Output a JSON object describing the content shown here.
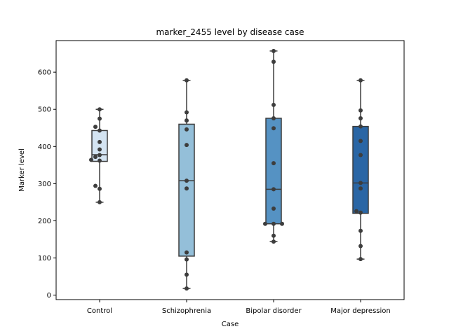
{
  "chart_data": {
    "type": "box",
    "title": "marker_2455 level by disease case",
    "xlabel": "Case",
    "ylabel": "Marker level",
    "ylim": [
      -12,
      685
    ],
    "yticks": [
      0,
      100,
      200,
      300,
      400,
      500,
      600
    ],
    "grid": false,
    "categories": [
      "Control",
      "Schizophrenia",
      "Bipolar disorder",
      "Major depression"
    ],
    "colors": [
      "#d4e4f2",
      "#94bfd9",
      "#5592c3",
      "#2a66a5"
    ],
    "boxes": [
      {
        "name": "Control",
        "whisker_low": 250,
        "q1": 360,
        "median": 378,
        "q3": 443,
        "whisker_high": 500
      },
      {
        "name": "Schizophrenia",
        "whisker_low": 18,
        "q1": 105,
        "median": 308,
        "q3": 460,
        "whisker_high": 578
      },
      {
        "name": "Bipolar disorder",
        "whisker_low": 144,
        "q1": 192,
        "median": 285,
        "q3": 476,
        "whisker_high": 657
      },
      {
        "name": "Major depression",
        "whisker_low": 97,
        "q1": 220,
        "median": 302,
        "q3": 454,
        "whisker_high": 578
      }
    ],
    "points": [
      {
        "category": "Control",
        "values": [
          500,
          475,
          453,
          443,
          412,
          392,
          377,
          372,
          364,
          362,
          294,
          286,
          250
        ]
      },
      {
        "category": "Schizophrenia",
        "values": [
          578,
          492,
          470,
          446,
          404,
          308,
          287,
          115,
          96,
          55,
          18
        ]
      },
      {
        "category": "Bipolar disorder",
        "values": [
          657,
          628,
          512,
          476,
          449,
          355,
          285,
          233,
          192,
          192,
          192,
          160,
          144
        ]
      },
      {
        "category": "Major depression",
        "values": [
          578,
          497,
          476,
          454,
          415,
          377,
          302,
          287,
          226,
          222,
          173,
          132,
          97
        ]
      }
    ]
  }
}
